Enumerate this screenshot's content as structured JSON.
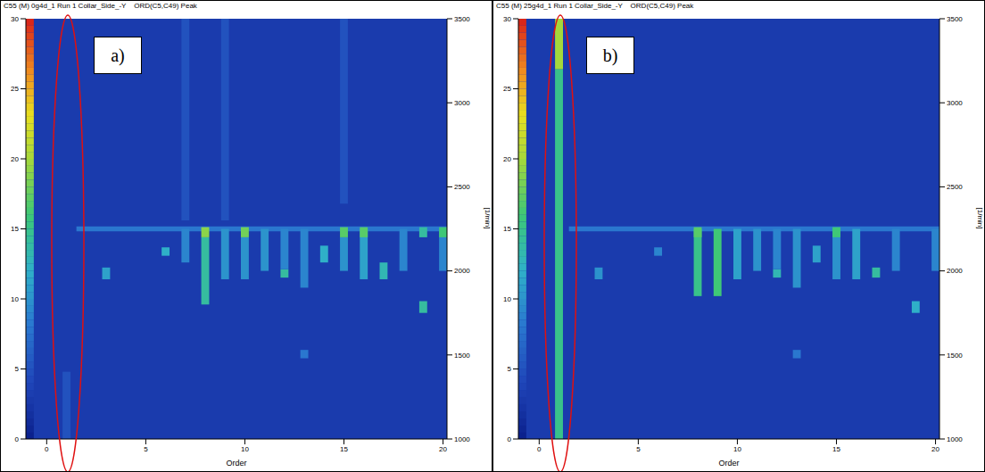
{
  "chart_data": [
    {
      "type": "heatmap",
      "title": "C55 (M) 0g4d_1 Run 1 Collar_Side_-Y",
      "subtitle": "ORD(C5,C49) Peak",
      "annotation": "a)",
      "x_label": "Order",
      "y_label": "[1/min]",
      "xlim": [
        -1.05,
        20.2
      ],
      "xticks": [
        0,
        5,
        10,
        15,
        20
      ],
      "ylim": [
        1000,
        3500
      ],
      "yticks": [
        1000,
        1500,
        2000,
        2500,
        3000,
        3500
      ],
      "colorbar": {
        "range": [
          0,
          30
        ],
        "ticks": [
          0,
          5,
          10,
          15,
          20,
          25,
          30
        ]
      },
      "base_value": 3,
      "bands": [
        {
          "x0": 1.5,
          "x1": 20.2,
          "y": 2250,
          "value": 8
        }
      ],
      "cells": [
        {
          "x": 1,
          "y0": 1000,
          "y1": 1400,
          "value": 5
        },
        {
          "x": 3,
          "y0": 1950,
          "y1": 2020,
          "value": 11
        },
        {
          "x": 6,
          "y0": 2090,
          "y1": 2140,
          "value": 12
        },
        {
          "x": 7,
          "y0": 2050,
          "y1": 2250,
          "value": 9
        },
        {
          "x": 8,
          "y0": 1800,
          "y1": 2200,
          "value": 14
        },
        {
          "x": 8,
          "y0": 2200,
          "y1": 2260,
          "value": 19
        },
        {
          "x": 9,
          "y0": 1950,
          "y1": 2250,
          "value": 10
        },
        {
          "x": 10,
          "y0": 1950,
          "y1": 2200,
          "value": 10
        },
        {
          "x": 10,
          "y0": 2200,
          "y1": 2260,
          "value": 18
        },
        {
          "x": 11,
          "y0": 2000,
          "y1": 2250,
          "value": 10
        },
        {
          "x": 12,
          "y0": 1960,
          "y1": 2010,
          "value": 14
        },
        {
          "x": 12,
          "y0": 2010,
          "y1": 2250,
          "value": 9
        },
        {
          "x": 13,
          "y0": 1900,
          "y1": 2250,
          "value": 9
        },
        {
          "x": 13,
          "y0": 1480,
          "y1": 1530,
          "value": 8
        },
        {
          "x": 14,
          "y0": 2050,
          "y1": 2150,
          "value": 12
        },
        {
          "x": 15,
          "y0": 2000,
          "y1": 2200,
          "value": 10
        },
        {
          "x": 15,
          "y0": 2200,
          "y1": 2260,
          "value": 17
        },
        {
          "x": 16,
          "y0": 1950,
          "y1": 2250,
          "value": 11
        },
        {
          "x": 16,
          "y0": 2200,
          "y1": 2260,
          "value": 17
        },
        {
          "x": 17,
          "y0": 1950,
          "y1": 2050,
          "value": 13
        },
        {
          "x": 18,
          "y0": 2000,
          "y1": 2250,
          "value": 9
        },
        {
          "x": 19,
          "y0": 1750,
          "y1": 1820,
          "value": 14
        },
        {
          "x": 19,
          "y0": 2200,
          "y1": 2260,
          "value": 14
        },
        {
          "x": 20,
          "y0": 2000,
          "y1": 2250,
          "value": 9
        },
        {
          "x": 20,
          "y0": 2200,
          "y1": 2260,
          "value": 16
        },
        {
          "x": 7,
          "y0": 2300,
          "y1": 3500,
          "value": 5
        },
        {
          "x": 9,
          "y0": 2300,
          "y1": 3500,
          "value": 5
        },
        {
          "x": 15,
          "y0": 2400,
          "y1": 3500,
          "value": 5
        }
      ]
    },
    {
      "type": "heatmap",
      "title": "C55 (M) 25g4d_1 Run 1 Collar_Side_-Y",
      "subtitle": "ORD(C5,C49) Peak",
      "annotation": "b)",
      "x_label": "Order",
      "y_label": "[1/min]",
      "xlim": [
        -1.05,
        20.2
      ],
      "xticks": [
        0,
        5,
        10,
        15,
        20
      ],
      "ylim": [
        1000,
        3500
      ],
      "yticks": [
        1000,
        1500,
        2000,
        2500,
        3000,
        3500
      ],
      "colorbar": {
        "range": [
          0,
          30
        ],
        "ticks": [
          0,
          5,
          10,
          15,
          20,
          25,
          30
        ]
      },
      "base_value": 3,
      "bands": [
        {
          "x0": 1.5,
          "x1": 20.2,
          "y": 2250,
          "value": 8
        }
      ],
      "cells": [
        {
          "x": 1,
          "y0": 1000,
          "y1": 3200,
          "value": 15
        },
        {
          "x": 1,
          "y0": 3200,
          "y1": 3500,
          "value": 20
        },
        {
          "x": 3,
          "y0": 1950,
          "y1": 2020,
          "value": 10
        },
        {
          "x": 6,
          "y0": 2090,
          "y1": 2140,
          "value": 9
        },
        {
          "x": 8,
          "y0": 1850,
          "y1": 2250,
          "value": 15
        },
        {
          "x": 8,
          "y0": 2200,
          "y1": 2260,
          "value": 17
        },
        {
          "x": 9,
          "y0": 1850,
          "y1": 2250,
          "value": 16
        },
        {
          "x": 10,
          "y0": 1950,
          "y1": 2250,
          "value": 11
        },
        {
          "x": 11,
          "y0": 2000,
          "y1": 2250,
          "value": 10
        },
        {
          "x": 12,
          "y0": 1960,
          "y1": 2010,
          "value": 13
        },
        {
          "x": 12,
          "y0": 2010,
          "y1": 2250,
          "value": 9
        },
        {
          "x": 13,
          "y0": 1900,
          "y1": 2250,
          "value": 10
        },
        {
          "x": 13,
          "y0": 1480,
          "y1": 1530,
          "value": 8
        },
        {
          "x": 14,
          "y0": 2050,
          "y1": 2150,
          "value": 11
        },
        {
          "x": 15,
          "y0": 1950,
          "y1": 2250,
          "value": 10
        },
        {
          "x": 15,
          "y0": 2200,
          "y1": 2260,
          "value": 16
        },
        {
          "x": 16,
          "y0": 1950,
          "y1": 2250,
          "value": 11
        },
        {
          "x": 17,
          "y0": 1960,
          "y1": 2020,
          "value": 14
        },
        {
          "x": 18,
          "y0": 2000,
          "y1": 2250,
          "value": 9
        },
        {
          "x": 19,
          "y0": 1750,
          "y1": 1820,
          "value": 12
        },
        {
          "x": 20,
          "y0": 2000,
          "y1": 2250,
          "value": 9
        }
      ]
    }
  ]
}
